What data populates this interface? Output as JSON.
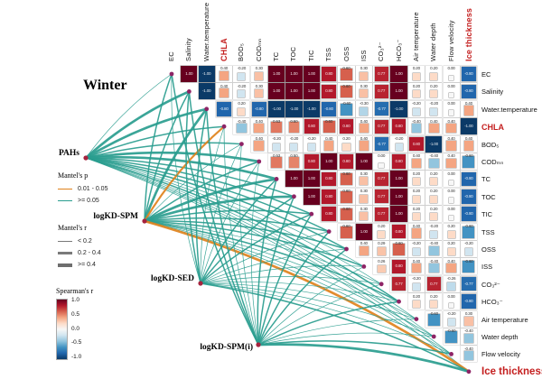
{
  "title": "Winter",
  "chart_data": {
    "type": "heatmap",
    "subtype": "mantel-test-correlation-network",
    "title": "Winter",
    "variables": [
      "EC",
      "Salinity",
      "Water.temperature",
      "CHLA",
      "BOD₅",
      "CODₘₙ",
      "TC",
      "TOC",
      "TIC",
      "TSS",
      "OSS",
      "ISS",
      "CO₃²⁻",
      "HCO₃⁻",
      "Air temperature",
      "Water depth",
      "Flow velocity",
      "Ice thickness"
    ],
    "red_variables": [
      "CHLA",
      "Ice thickness"
    ],
    "spearman_r_upper_triangle": {
      "note": "rows[i] holds Spearman r for row-variable i vs columns i+1..17",
      "rows": [
        [
          1.0,
          -1.0,
          0.4,
          -0.2,
          0.3,
          1.0,
          1.0,
          1.0,
          0.8,
          0.6,
          0.3,
          0.77,
          1.0,
          0.2,
          0.2,
          0.0,
          -0.8
        ],
        [
          -1.0,
          0.4,
          -0.2,
          0.3,
          1.0,
          1.0,
          1.0,
          0.8,
          0.6,
          0.3,
          0.77,
          1.0,
          0.2,
          0.2,
          0.0,
          -0.8
        ],
        [
          -0.8,
          0.2,
          -0.8,
          -1.0,
          -1.0,
          -1.0,
          -0.8,
          -0.6,
          -0.3,
          -0.77,
          -1.0,
          -0.2,
          -0.2,
          0.0,
          0.4
        ],
        [
          -0.4,
          0.4,
          0.53,
          0.5,
          0.8,
          0.6,
          0.8,
          0.4,
          0.77,
          0.8,
          -0.4,
          0.4,
          0.4,
          -1.0
        ],
        [
          0.4,
          -0.2,
          -0.2,
          -0.2,
          0.4,
          0.2,
          0.4,
          -0.77,
          -0.2,
          0.8,
          -1.0,
          0.4,
          0.4
        ],
        [
          0.53,
          0.5,
          0.8,
          1.0,
          0.8,
          1.0,
          0.0,
          0.8,
          0.4,
          -0.4,
          0.4,
          -0.6
        ],
        [
          1.0,
          1.0,
          0.8,
          0.6,
          0.3,
          0.77,
          1.0,
          0.2,
          0.2,
          0.0,
          -0.8
        ],
        [
          1.0,
          0.8,
          0.6,
          0.3,
          0.77,
          1.0,
          0.2,
          0.2,
          0.0,
          -0.8
        ],
        [
          0.8,
          0.6,
          0.3,
          0.77,
          1.0,
          0.2,
          0.2,
          0.0,
          -0.8
        ],
        [
          0.6,
          1.0,
          0.2,
          0.8,
          0.4,
          -0.2,
          0.2,
          -0.6
        ],
        [
          0.4,
          0.29,
          0.6,
          -0.2,
          -0.4,
          0.2,
          -0.2
        ],
        [
          0.26,
          0.8,
          0.4,
          -0.4,
          0.4,
          -0.6
        ],
        [
          0.77,
          -0.2,
          0.77,
          -0.26,
          -0.77
        ],
        [
          0.2,
          0.2,
          0.0,
          -0.8
        ],
        [
          -0.6,
          -0.2,
          0.3
        ],
        [
          -0.6,
          -0.4
        ],
        [
          -0.4
        ]
      ]
    },
    "network": {
      "nodes": [
        "PAHs",
        "logKD-SPM",
        "logKD-SED",
        "logKD-SPM(i)"
      ],
      "edge_width_classes": {
        "1": "< 0.2",
        "2": "0.2 - 0.4",
        "3": ">= 0.4"
      },
      "edges": [
        {
          "from": "PAHs",
          "sig_targets": [],
          "w": [
            1,
            3,
            3,
            2,
            2,
            3,
            3,
            2,
            2,
            2,
            2,
            1,
            1,
            2,
            1,
            1,
            1,
            1
          ]
        },
        {
          "from": "logKD-SPM",
          "sig_targets": [
            "CHLA",
            "Ice thickness"
          ],
          "w": [
            2,
            2,
            3,
            2,
            1,
            2,
            3,
            3,
            2,
            2,
            2,
            2,
            1,
            2,
            1,
            1,
            1,
            3
          ]
        },
        {
          "from": "logKD-SED",
          "sig_targets": [],
          "w": [
            1,
            2,
            2,
            1,
            1,
            1,
            2,
            2,
            2,
            1,
            1,
            1,
            1,
            1,
            1,
            1,
            1,
            2
          ]
        },
        {
          "from": "logKD-SPM(i)",
          "sig_targets": [],
          "w": [
            2,
            2,
            2,
            1,
            1,
            1,
            2,
            2,
            2,
            2,
            2,
            1,
            1,
            2,
            1,
            1,
            2,
            3
          ]
        }
      ]
    }
  },
  "legends": {
    "mantel_p": {
      "title": "Mantel's p",
      "items": [
        {
          "label": "0.01 - 0.05",
          "color": "#e0821c"
        },
        {
          "label": ">= 0.05",
          "color": "#2a9d8f"
        }
      ]
    },
    "mantel_r": {
      "title": "Mantel's r",
      "items": [
        {
          "label": "< 0.2"
        },
        {
          "label": "0.2 - 0.4"
        },
        {
          "label": ">= 0.4"
        }
      ]
    },
    "spearman": {
      "title": "Spearman's r",
      "ticks": [
        "1.0",
        "0.5",
        "0.0",
        "-0.5",
        "-1.0"
      ]
    }
  },
  "colors": {
    "edge_nonsig": "#2a9d8f",
    "edge_sig": "#e0821c",
    "diag_dot": "#8e2466",
    "node_dot": "#a6233e",
    "red_label": "#c41f1f",
    "cmap_positive_max": "#67001f",
    "cmap_negative_max": "#0b3a67"
  }
}
